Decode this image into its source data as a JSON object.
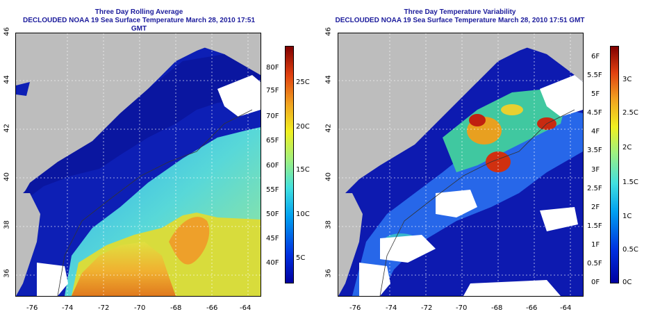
{
  "left_panel": {
    "title_line1": "Three Day Rolling Average",
    "title_line2": "DECLOUDED NOAA 19 Sea Surface Temperature March 28, 2010 17:51 GMT",
    "lon_ticks": [
      "-76",
      "-74",
      "-72",
      "-70",
      "-68",
      "-66",
      "-64"
    ],
    "lat_ticks": [
      "36",
      "38",
      "40",
      "42",
      "44",
      "46"
    ],
    "colorbar_f_ticks": [
      "80F",
      "75F",
      "70F",
      "65F",
      "60F",
      "55F",
      "50F",
      "45F",
      "40F"
    ],
    "colorbar_c_ticks": [
      "25C",
      "20C",
      "15C",
      "10C",
      "5C"
    ]
  },
  "right_panel": {
    "title_line1": "Three Day Temperature Variability",
    "title_line2": "DECLOUDED NOAA 19 Sea Surface Temperature March 28, 2010 17:51 GMT",
    "lon_ticks": [
      "-76",
      "-74",
      "-72",
      "-70",
      "-68",
      "-66",
      "-64"
    ],
    "lat_ticks": [
      "36",
      "38",
      "40",
      "42",
      "44",
      "46"
    ],
    "colorbar_f_ticks": [
      "6F",
      "5.5F",
      "5F",
      "4.5F",
      "4F",
      "3.5F",
      "3F",
      "2.5F",
      "2F",
      "1.5F",
      "1F",
      "0.5F",
      "0F"
    ],
    "colorbar_c_ticks": [
      "3C",
      "2.5C",
      "2C",
      "1.5C",
      "1C",
      "0.5C",
      "0C"
    ]
  },
  "colors": {
    "title": "#1c1c9c",
    "land": "#bdbdbd",
    "cold": "#0a1aa8",
    "warm": "#e8a020"
  }
}
